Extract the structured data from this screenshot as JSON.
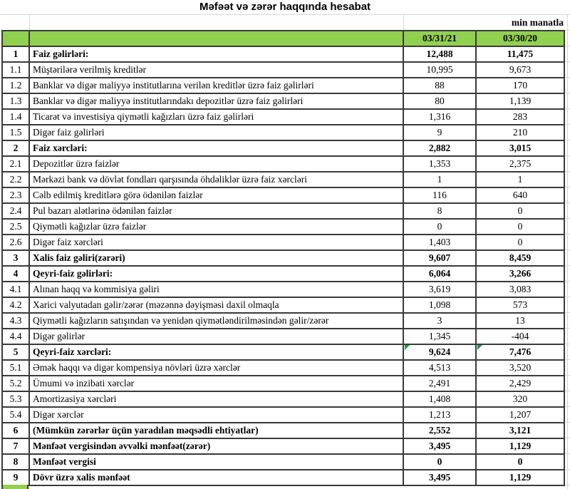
{
  "title": "Məfəət və zərər haqqında hesabat",
  "unit_note": "min manatla",
  "columns": [
    "03/31/21",
    "03/30/20"
  ],
  "colors": {
    "header_green": "#92D050",
    "border_dark": "#3a3a3a",
    "gridline_gray": "#d6d6d6",
    "flag_triangle_green": "#1f9d3f"
  },
  "rows": [
    {
      "num": "1",
      "label": "Faiz gəlirləri:",
      "v1": "12,488",
      "v2": "11,475",
      "bold": true,
      "flag": false
    },
    {
      "num": "1.1",
      "label": "Müştərilərə verilmiş kreditlər",
      "v1": "10,995",
      "v2": "9,673",
      "bold": false,
      "flag": false
    },
    {
      "num": "1.2",
      "label": "Banklar və digər maliyyə institutlarına verilən kreditlər üzrə faiz gəlirləri",
      "v1": "88",
      "v2": "170",
      "bold": false,
      "flag": false
    },
    {
      "num": "1.3",
      "label": "Banklar və digər maliyyə institutlarındakı depozitlər üzrə faiz gəlirləri",
      "v1": "80",
      "v2": "1,139",
      "bold": false,
      "flag": false
    },
    {
      "num": "1.4",
      "label": "Ticarət və investisiya qiymətli kağızları üzrə faiz gəlirləri",
      "v1": "1,316",
      "v2": "283",
      "bold": false,
      "flag": false
    },
    {
      "num": "1.5",
      "label": "Digər faiz gəlirləri",
      "v1": "9",
      "v2": "210",
      "bold": false,
      "flag": false
    },
    {
      "num": "2",
      "label": "Faiz xərcləri:",
      "v1": "2,882",
      "v2": "3,015",
      "bold": true,
      "flag": false
    },
    {
      "num": "2.1",
      "label": "Depozitlər üzrə faizlər",
      "v1": "1,353",
      "v2": "2,375",
      "bold": false,
      "flag": false
    },
    {
      "num": "2.2",
      "label": "Mərkəzi bank və dövlət fondları qarşısında öhdəliklər üzrə faiz xərcləri",
      "v1": "1",
      "v2": "1",
      "bold": false,
      "flag": false
    },
    {
      "num": "2.3",
      "label": "Cəlb edilmiş kreditlərə görə ödənilən faizlər",
      "v1": "116",
      "v2": "640",
      "bold": false,
      "flag": false
    },
    {
      "num": "2.4",
      "label": "Pul bazarı alətlərinə ödənilən faizlər",
      "v1": "8",
      "v2": "0",
      "bold": false,
      "flag": false
    },
    {
      "num": "2.5",
      "label": "Qiymətli kağızlar üzrə faizlər",
      "v1": "0",
      "v2": "0",
      "bold": false,
      "flag": false
    },
    {
      "num": "2.6",
      "label": "Digər faiz xərcləri",
      "v1": "1,403",
      "v2": "0",
      "bold": false,
      "flag": false
    },
    {
      "num": "3",
      "label": "Xalis faiz gəliri(zərəri)",
      "v1": "9,607",
      "v2": "8,459",
      "bold": true,
      "flag": false
    },
    {
      "num": "4",
      "label": "Qeyri-faiz gəlirləri:",
      "v1": "6,064",
      "v2": "3,266",
      "bold": true,
      "flag": false
    },
    {
      "num": "4.1",
      "label": "Alınan haqq və kommisiya gəliri",
      "v1": "3,619",
      "v2": "3,083",
      "bold": false,
      "flag": false
    },
    {
      "num": "4.2",
      "label": "Xarici valyutadan gəlir/zərər (məzənnə dəyişməsi daxil olmaqla",
      "v1": "1,098",
      "v2": "573",
      "bold": false,
      "flag": false
    },
    {
      "num": "4.3",
      "label": "Qiymətli kağızların satışından və yenidən qiymətləndirilməsindən gəlir/zərər",
      "v1": "3",
      "v2": "13",
      "bold": false,
      "flag": false
    },
    {
      "num": "4.4",
      "label": "Digər gəlirlər",
      "v1": "1,345",
      "v2": "-404",
      "bold": false,
      "flag": false
    },
    {
      "num": "5",
      "label": "Qeyri-faiz xərcləri:",
      "v1": "9,624",
      "v2": "7,476",
      "bold": true,
      "flag": true
    },
    {
      "num": "5.1",
      "label": "Əmək haqqı və digər kompensiya növləri üzrə xərclər",
      "v1": "4,513",
      "v2": "3,520",
      "bold": false,
      "flag": false
    },
    {
      "num": "5.2",
      "label": "Ümumi və inzibati xərclər",
      "v1": "2,491",
      "v2": "2,429",
      "bold": false,
      "flag": false
    },
    {
      "num": "5.3",
      "label": "Amortizasiya xərcləri",
      "v1": "1,408",
      "v2": "320",
      "bold": false,
      "flag": false
    },
    {
      "num": "5.4",
      "label": "Digər xərclər",
      "v1": "1,213",
      "v2": "1,207",
      "bold": false,
      "flag": false
    },
    {
      "num": "6",
      "label": "(Mümkün zərərlər üçün yaradılan məqsədli ehtiyatlar)",
      "v1": "2,552",
      "v2": "3,121",
      "bold": true,
      "flag": false
    },
    {
      "num": "7",
      "label": "Mənfəət vergisindən əvvəlki mənfəət(zərər)",
      "v1": "3,495",
      "v2": "1,129",
      "bold": true,
      "flag": false
    },
    {
      "num": "8",
      "label": "Mənfəət vergisi",
      "v1": "0",
      "v2": "0",
      "bold": true,
      "flag": false
    },
    {
      "num": "9",
      "label": "Dövr üzrə xalis mənfəət",
      "v1": "3,495",
      "v2": "1,129",
      "bold": true,
      "flag": false
    }
  ]
}
